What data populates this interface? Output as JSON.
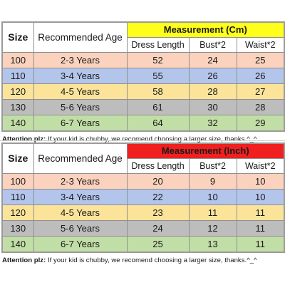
{
  "tables": [
    {
      "headers": {
        "size": "Size",
        "age": "Recommended Age",
        "measurement": "Measurement (Cm)",
        "columns": [
          "Dress Length",
          "Bust*2",
          "Waist*2"
        ]
      },
      "rows": [
        {
          "size": "100",
          "age": "2-3 Years",
          "dress": "52",
          "bust": "24",
          "waist": "25"
        },
        {
          "size": "110",
          "age": "3-4 Years",
          "dress": "55",
          "bust": "26",
          "waist": "26"
        },
        {
          "size": "120",
          "age": "4-5 Years",
          "dress": "58",
          "bust": "28",
          "waist": "27"
        },
        {
          "size": "130",
          "age": "5-6 Years",
          "dress": "61",
          "bust": "30",
          "waist": "28"
        },
        {
          "size": "140",
          "age": "6-7 Years",
          "dress": "64",
          "bust": "32",
          "waist": "29"
        }
      ],
      "note": {
        "label": "Attention plz:",
        "text": " If your kid is chubby, we recomend choosing a larger size, thanks.^_^"
      }
    },
    {
      "headers": {
        "size": "Size",
        "age": "Recommended Age",
        "measurement": "Measurement (Inch)",
        "columns": [
          "Dress Length",
          "Bust*2",
          "Waist*2"
        ]
      },
      "rows": [
        {
          "size": "100",
          "age": "2-3 Years",
          "dress": "20",
          "bust": "9",
          "waist": "10"
        },
        {
          "size": "110",
          "age": "3-4 Years",
          "dress": "22",
          "bust": "10",
          "waist": "10"
        },
        {
          "size": "120",
          "age": "4-5 Years",
          "dress": "23",
          "bust": "11",
          "waist": "11"
        },
        {
          "size": "130",
          "age": "5-6 Years",
          "dress": "24",
          "bust": "12",
          "waist": "11"
        },
        {
          "size": "140",
          "age": "6-7 Years",
          "dress": "25",
          "bust": "13",
          "waist": "11"
        }
      ],
      "note": {
        "label": "Attention plz:",
        "text": " If your kid is chubby, we recomend choosing a larger size, thanks.^_^"
      }
    }
  ],
  "colors": {
    "cm_header": "#ffff1a",
    "inch_header": "#f02020",
    "row_colors": [
      "#fbd2bd",
      "#b4c5ec",
      "#fbe49a",
      "#bdbdbd",
      "#c2dea7"
    ]
  }
}
